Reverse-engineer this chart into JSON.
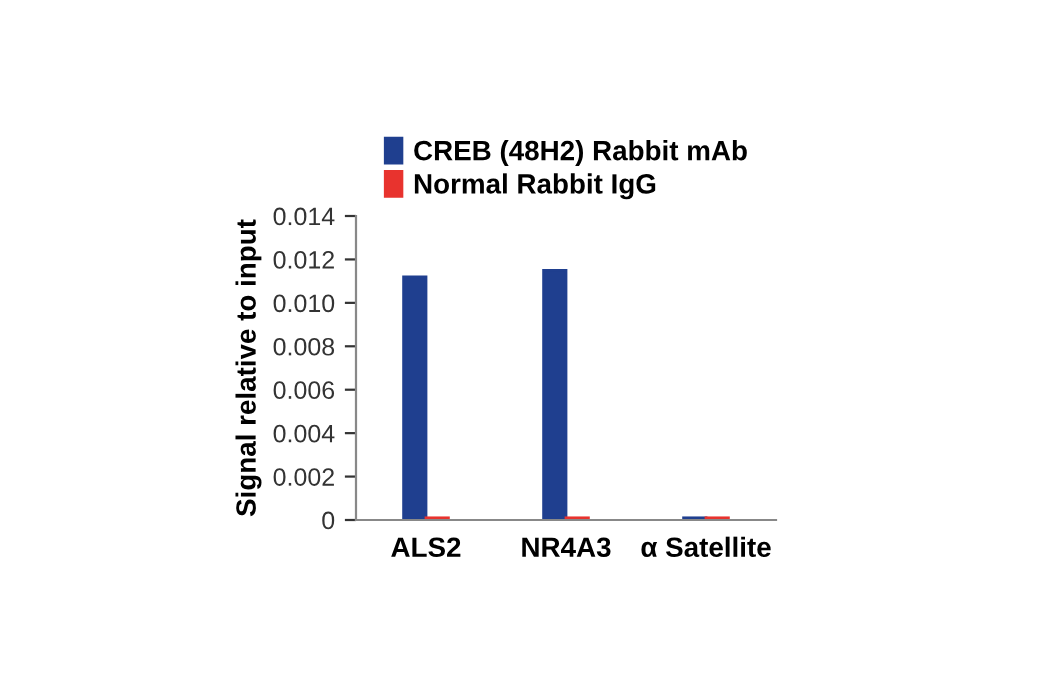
{
  "chart_data": {
    "type": "bar",
    "ylabel": "Signal relative to input",
    "categories": [
      "ALS2",
      "NR4A3",
      "α Satellite"
    ],
    "series": [
      {
        "name": "CREB (48H2) Rabbit mAb",
        "color": "#1f3f8f",
        "values": [
          0.0112,
          0.0115,
          0.0001
        ]
      },
      {
        "name": "Normal Rabbit IgG",
        "color": "#e8332e",
        "values": [
          0.0001,
          0.0001,
          0.0001
        ]
      }
    ],
    "ylim": [
      0,
      0.014
    ],
    "yticks": [
      0,
      {
        "value": 0.002,
        "label": "0.002"
      },
      {
        "value": 0.004,
        "label": "0.004"
      },
      {
        "value": 0.006,
        "label": "0.006"
      },
      {
        "value": 0.008,
        "label": "0.008"
      },
      {
        "value": 0.01,
        "label": "0.010"
      },
      {
        "value": 0.012,
        "label": "0.012"
      },
      {
        "value": 0.014,
        "label": "0.014"
      }
    ],
    "grid": false,
    "legend": "top"
  }
}
